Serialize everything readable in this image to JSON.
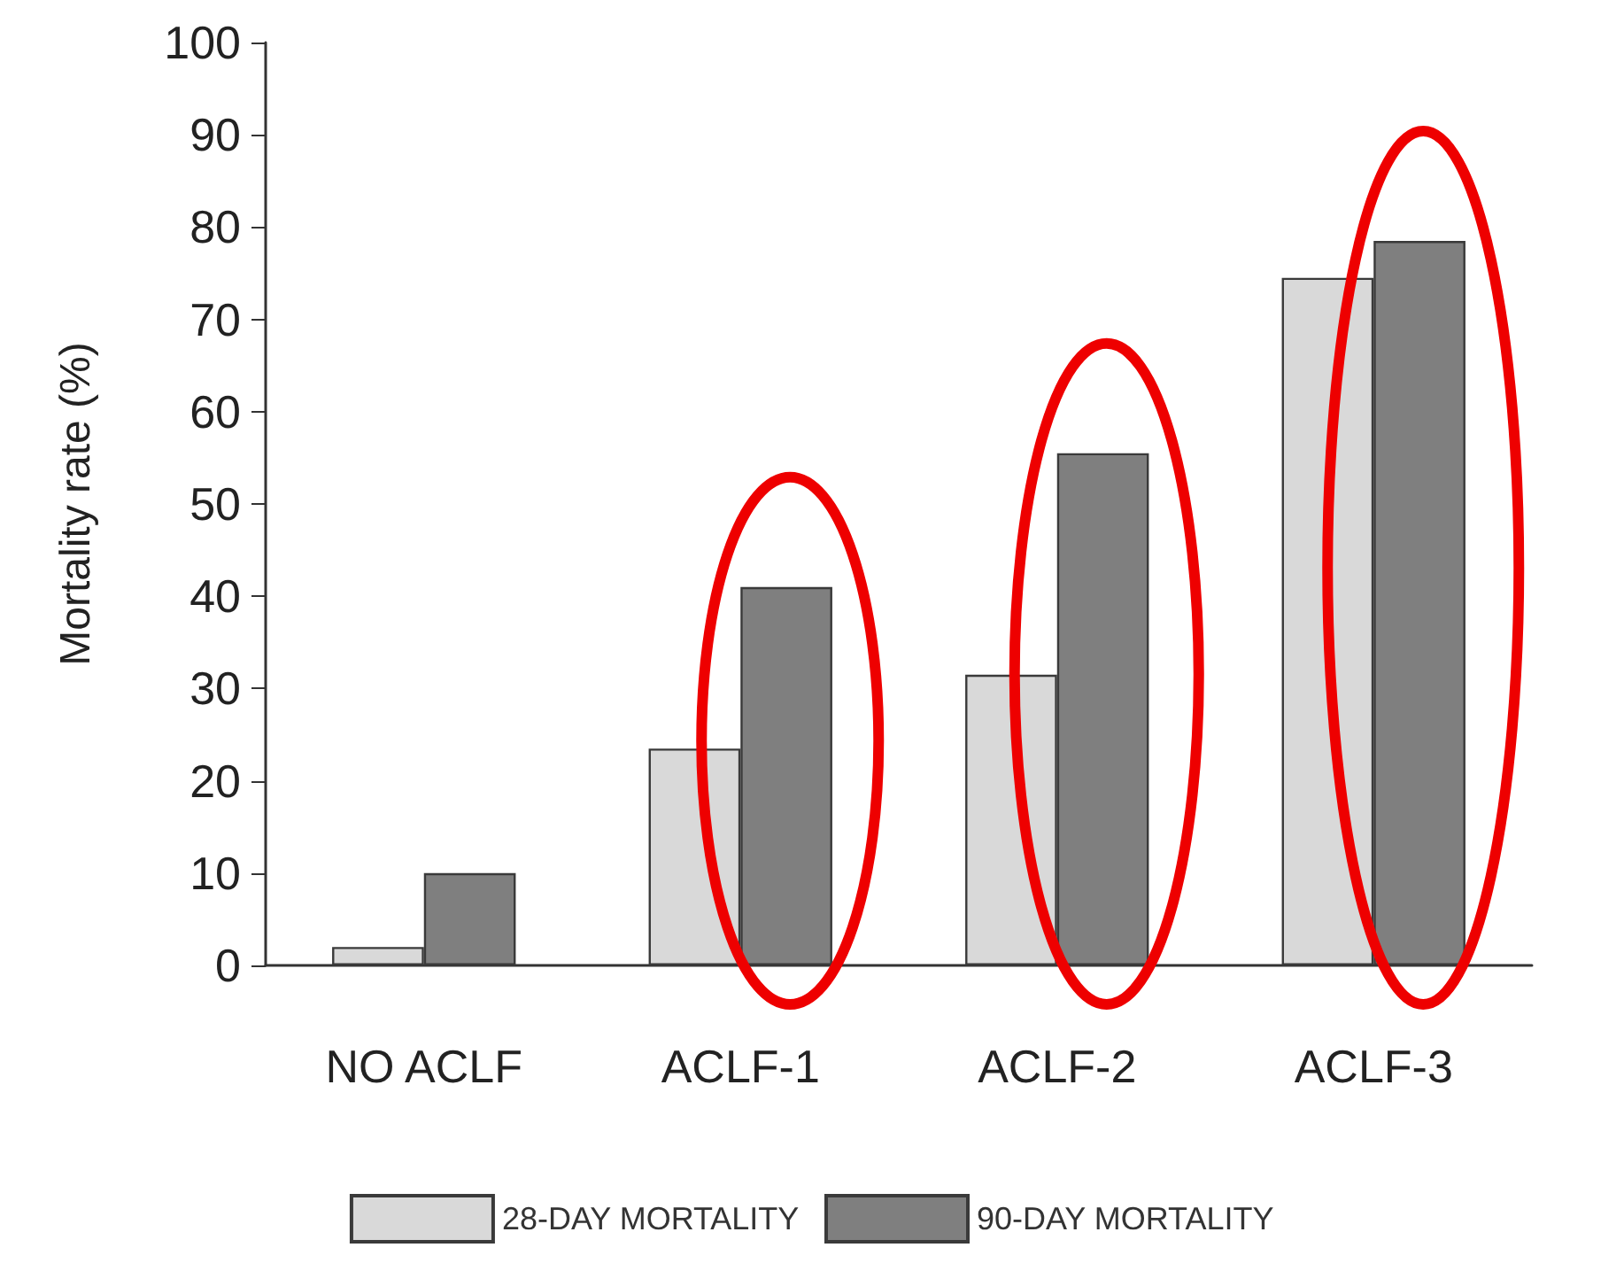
{
  "chart_data": {
    "type": "bar",
    "ylabel": "Mortality rate (%)",
    "categories": [
      "NO ACLF",
      "ACLF-1",
      "ACLF-2",
      "ACLF-3"
    ],
    "series": [
      {
        "name": "28-DAY MORTALITY",
        "color": "#d9d9d9",
        "values": [
          2,
          23.5,
          31.5,
          74.5
        ]
      },
      {
        "name": "90-DAY MORTALITY",
        "color": "#7f7f7f",
        "values": [
          10,
          41,
          55.5,
          78.5
        ]
      }
    ],
    "ylim": [
      0,
      100
    ],
    "yticks": [
      0,
      10,
      20,
      30,
      40,
      50,
      60,
      70,
      80,
      90,
      100
    ],
    "grid": false,
    "legend": "bottom"
  }
}
